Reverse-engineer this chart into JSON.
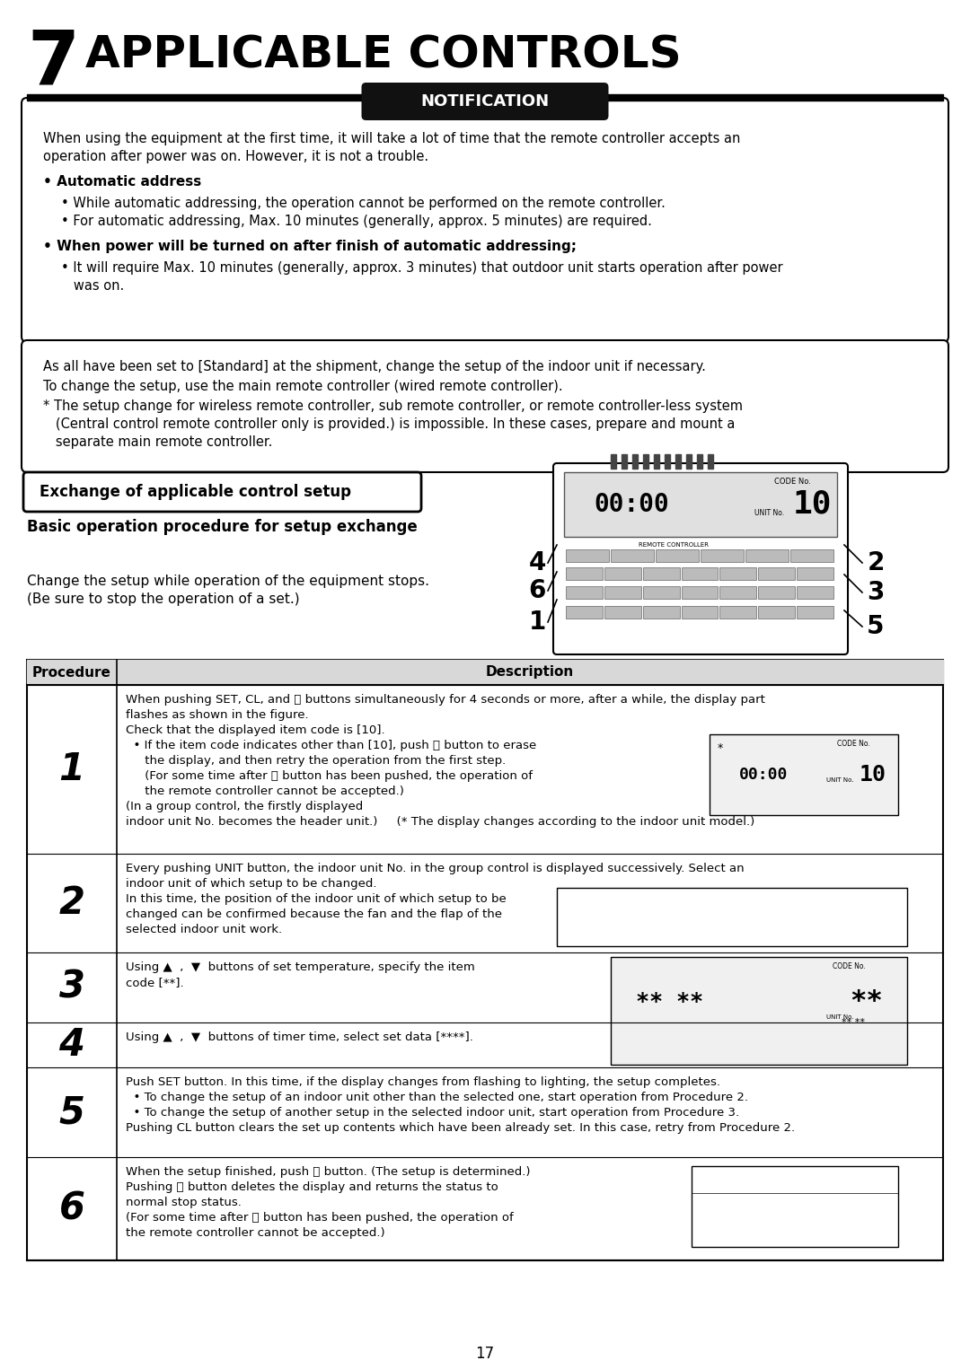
{
  "title_number": "7",
  "title_text": "APPLICABLE CONTROLS",
  "notification_label": "NOTIFICATION",
  "notif_body1": "When using the equipment at the first time, it will take a lot of time that the remote controller accepts an",
  "notif_body2": "operation after power was on. However, it is not a trouble.",
  "auto_addr_hdr": "• Automatic address",
  "auto_b1": "• While automatic addressing, the operation cannot be performed on the remote controller.",
  "auto_b2": "• For automatic addressing, Max. 10 minutes (generally, approx. 5 minutes) are required.",
  "power_hdr": "• When power will be turned on after finish of automatic addressing;",
  "power_b1": "• It will require Max. 10 minutes (generally, approx. 3 minutes) that outdoor unit starts operation after power",
  "power_b2": "   was on.",
  "box2_l1": "As all have been set to [Standard] at the shipment, change the setup of the indoor unit if necessary.",
  "box2_l2": "To change the setup, use the main remote controller (wired remote controller).",
  "box2_l3a": "* The setup change for wireless remote controller, sub remote controller, or remote controller-less system",
  "box2_l3b": "   (Central control remote controller only is provided.) is impossible. In these cases, prepare and mount a",
  "box2_l3c": "   separate main remote controller.",
  "exchange_hdr": "Exchange of applicable control setup",
  "basic_op_hdr": "Basic operation procedure for setup exchange",
  "basic_op_t1": "Change the setup while operation of the equipment stops.",
  "basic_op_t2": "(Be sure to stop the operation of a set.)",
  "tbl_proc": "Procedure",
  "tbl_desc": "Description",
  "r1_text1": "When pushing SET, CL, and ⓹ buttons simultaneously for 4 seconds or more, after a while, the display part",
  "r1_text2": "flashes as shown in the figure.",
  "r1_text3": "Check that the displayed item code is [10].",
  "r1_text4": "  • If the item code indicates other than [10], push ⓹ button to erase",
  "r1_text5": "     the display, and then retry the operation from the first step.",
  "r1_text6": "     (For some time after ⓹ button has been pushed, the operation of",
  "r1_text7": "     the remote controller cannot be accepted.)",
  "r1_text8": "(In a group control, the firstly displayed",
  "r1_text9": "indoor unit No. becomes the header unit.)     (* The display changes according to the indoor unit model.)",
  "r2_text1": "Every pushing UNIT button, the indoor unit No. in the group control is displayed successively. Select an",
  "r2_text2": "indoor unit of which setup to be changed.",
  "r2_text3": "In this time, the position of the indoor unit of which setup to be",
  "r2_text4": "changed can be confirmed because the fan and the flap of the",
  "r2_text5": "selected indoor unit work.",
  "r3_text1": "Using ▲  ,  ▼  buttons of set temperature, specify the item",
  "r3_text2": "code [**].",
  "r4_text1": "Using ▲  ,  ▼  buttons of timer time, select set data [****].",
  "r5_text1": "Push SET button. In this time, if the display changes from flashing to lighting, the setup completes.",
  "r5_text2": "  • To change the setup of an indoor unit other than the selected one, start operation from Procedure 2.",
  "r5_text3": "  • To change the setup of another setup in the selected indoor unit, start operation from Procedure 3.",
  "r5_text4": "Pushing CL button clears the set up contents which have been already set. In this case, retry from Procedure 2.",
  "r6_text1": "When the setup finished, push ⓹ button. (The setup is determined.)",
  "r6_text2": "Pushing ⓹ button deletes the display and returns the status to",
  "r6_text3": "normal stop status.",
  "r6_text4": "(For some time after ⓹ button has been pushed, the operation of",
  "r6_text5": "the remote controller cannot be accepted.)",
  "page_num": "17",
  "bg": "#ffffff",
  "fg": "#000000",
  "notif_pill_bg": "#111111",
  "notif_pill_fg": "#ffffff",
  "tbl_hdr_bg": "#d8d8d8"
}
